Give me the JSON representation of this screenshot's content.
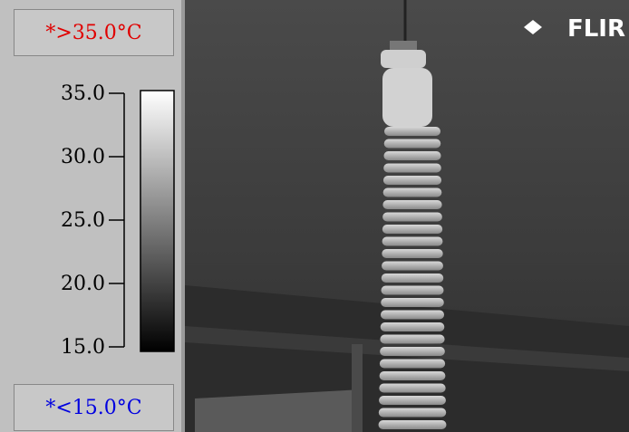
{
  "header": {
    "max_label": "*>35.0°C",
    "min_label": "*<15.0°C"
  },
  "scale": {
    "ticks": [
      "35.0",
      "30.0",
      "25.0",
      "20.0",
      "15.0"
    ]
  },
  "image": {
    "logo": "FLIR"
  }
}
